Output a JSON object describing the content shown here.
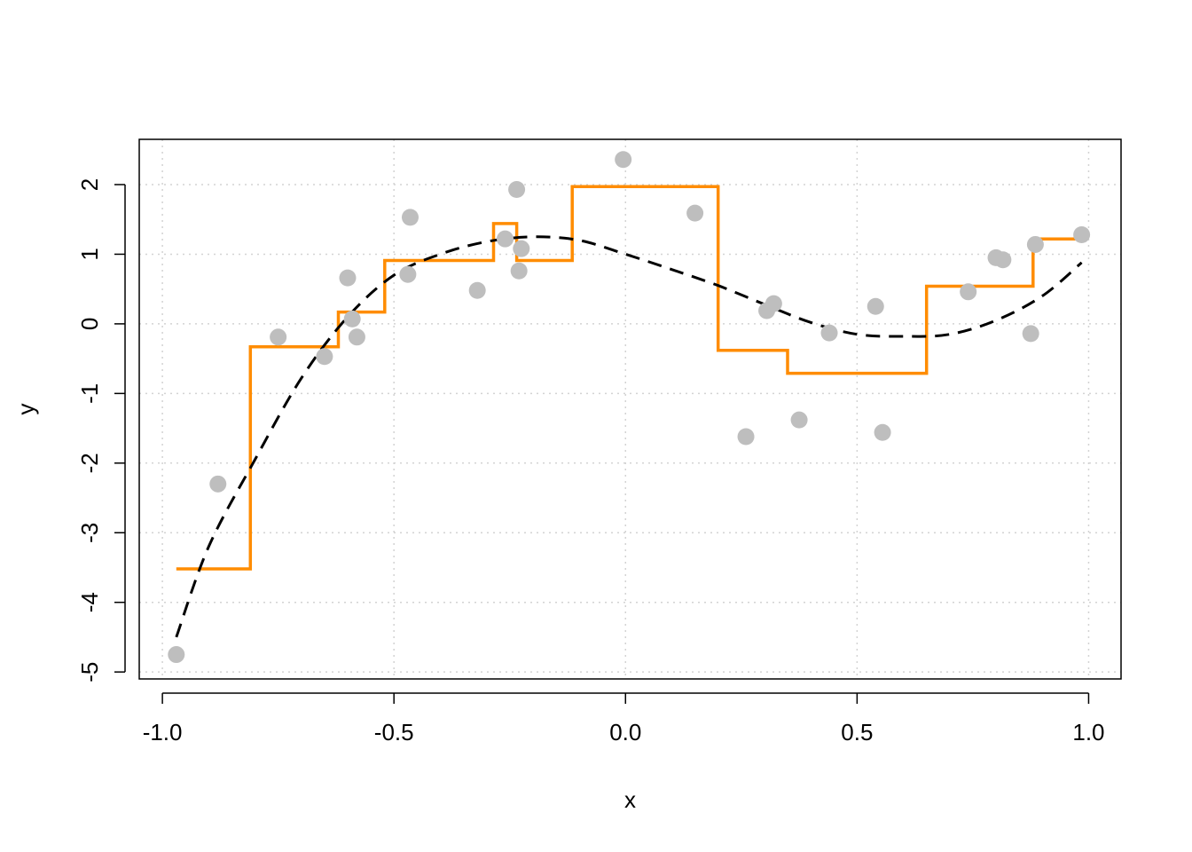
{
  "chart_data": {
    "type": "scatter",
    "title": "",
    "xlabel": "x",
    "ylabel": "y",
    "xlim": [
      -1.05,
      1.07
    ],
    "ylim": [
      -5.1,
      2.65
    ],
    "grid": true,
    "x_ticks": [
      -1.0,
      -0.5,
      0.0,
      0.5,
      1.0
    ],
    "x_tick_labels": [
      "-1.0",
      "-0.5",
      "0.0",
      "0.5",
      "1.0"
    ],
    "y_ticks": [
      -5,
      -4,
      -3,
      -2,
      -1,
      0,
      1,
      2
    ],
    "y_tick_labels": [
      "-5",
      "-4",
      "-3",
      "-2",
      "-1",
      "0",
      "1",
      "2"
    ],
    "colors": {
      "points": "#bebebe",
      "step": "#ff8c00",
      "curve": "#000000",
      "grid": "#d3d3d3",
      "axis": "#000000"
    },
    "series": [
      {
        "type": "scatter",
        "x": [
          -0.97,
          -0.88,
          -0.75,
          -0.65,
          -0.6,
          -0.59,
          -0.58,
          -0.47,
          -0.465,
          -0.32,
          -0.26,
          -0.235,
          -0.23,
          -0.225,
          -0.005,
          0.15,
          0.26,
          0.305,
          0.32,
          0.375,
          0.44,
          0.54,
          0.555,
          0.74,
          0.8,
          0.815,
          0.875,
          0.885,
          0.985
        ],
        "y": [
          -4.75,
          -2.3,
          -0.19,
          -0.47,
          0.66,
          0.07,
          -0.19,
          0.71,
          1.53,
          0.48,
          1.22,
          1.93,
          0.76,
          1.08,
          2.36,
          1.59,
          -1.62,
          0.19,
          0.29,
          -1.38,
          -0.13,
          0.25,
          -1.56,
          0.46,
          0.95,
          0.92,
          -0.14,
          1.14,
          1.28
        ]
      },
      {
        "type": "step",
        "x": [
          -0.97,
          -0.81,
          -0.81,
          -0.62,
          -0.62,
          -0.52,
          -0.52,
          -0.285,
          -0.285,
          -0.235,
          -0.235,
          -0.115,
          -0.115,
          0.2,
          0.2,
          0.35,
          0.35,
          0.65,
          0.65,
          0.88,
          0.88,
          0.985
        ],
        "y": [
          -3.52,
          -3.52,
          -0.33,
          -0.33,
          0.17,
          0.17,
          0.91,
          0.91,
          1.44,
          1.44,
          0.91,
          0.91,
          1.97,
          1.97,
          -0.38,
          -0.38,
          -0.71,
          -0.71,
          0.54,
          0.54,
          1.22,
          1.22
        ]
      },
      {
        "type": "line",
        "style": "dashed",
        "x": [
          -0.97,
          -0.9,
          -0.8,
          -0.7,
          -0.6,
          -0.5,
          -0.4,
          -0.3,
          -0.2,
          -0.1,
          0.0,
          0.1,
          0.2,
          0.3,
          0.4,
          0.5,
          0.6,
          0.7,
          0.8,
          0.9,
          0.985
        ],
        "y": [
          -4.5,
          -3.2,
          -1.95,
          -0.78,
          0.1,
          0.7,
          1.0,
          1.18,
          1.25,
          1.2,
          1.0,
          0.78,
          0.55,
          0.28,
          0.02,
          -0.15,
          -0.18,
          -0.15,
          0.05,
          0.4,
          0.88
        ]
      }
    ]
  }
}
